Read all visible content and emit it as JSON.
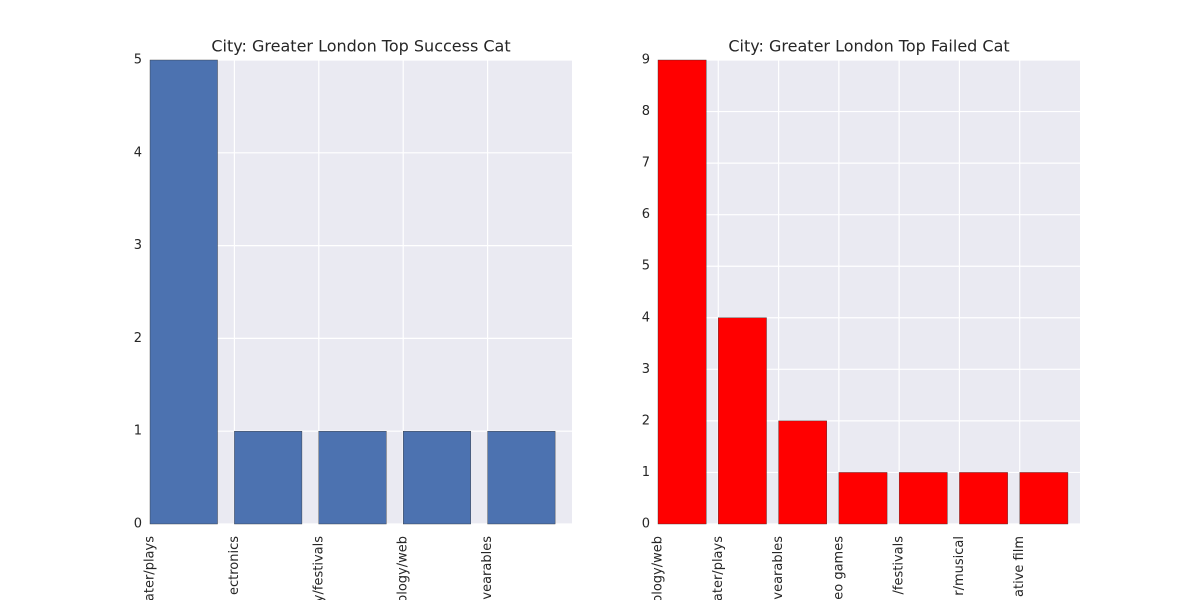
{
  "chart_data": [
    {
      "type": "bar",
      "title": "City: Greater London Top Success Cat",
      "categories": [
        "ater/plays",
        "ectronics",
        "y/festivals",
        "ology/web",
        "vearables"
      ],
      "values": [
        5,
        1,
        1,
        1,
        1
      ],
      "color": "#4c72b0",
      "ylim": [
        0,
        5
      ],
      "yticks": [
        0,
        1,
        2,
        3,
        4,
        5
      ],
      "grid": true
    },
    {
      "type": "bar",
      "title": "City: Greater London Top Failed Cat",
      "categories": [
        "ology/web",
        "ater/plays",
        "vearables",
        "eo games",
        "/festivals",
        "r/musical",
        "ative film"
      ],
      "values": [
        9,
        4,
        2,
        1,
        1,
        1,
        1
      ],
      "color": "#ff0000",
      "ylim": [
        0,
        9
      ],
      "yticks": [
        0,
        1,
        2,
        3,
        4,
        5,
        6,
        7,
        8,
        9
      ],
      "grid": true
    }
  ]
}
